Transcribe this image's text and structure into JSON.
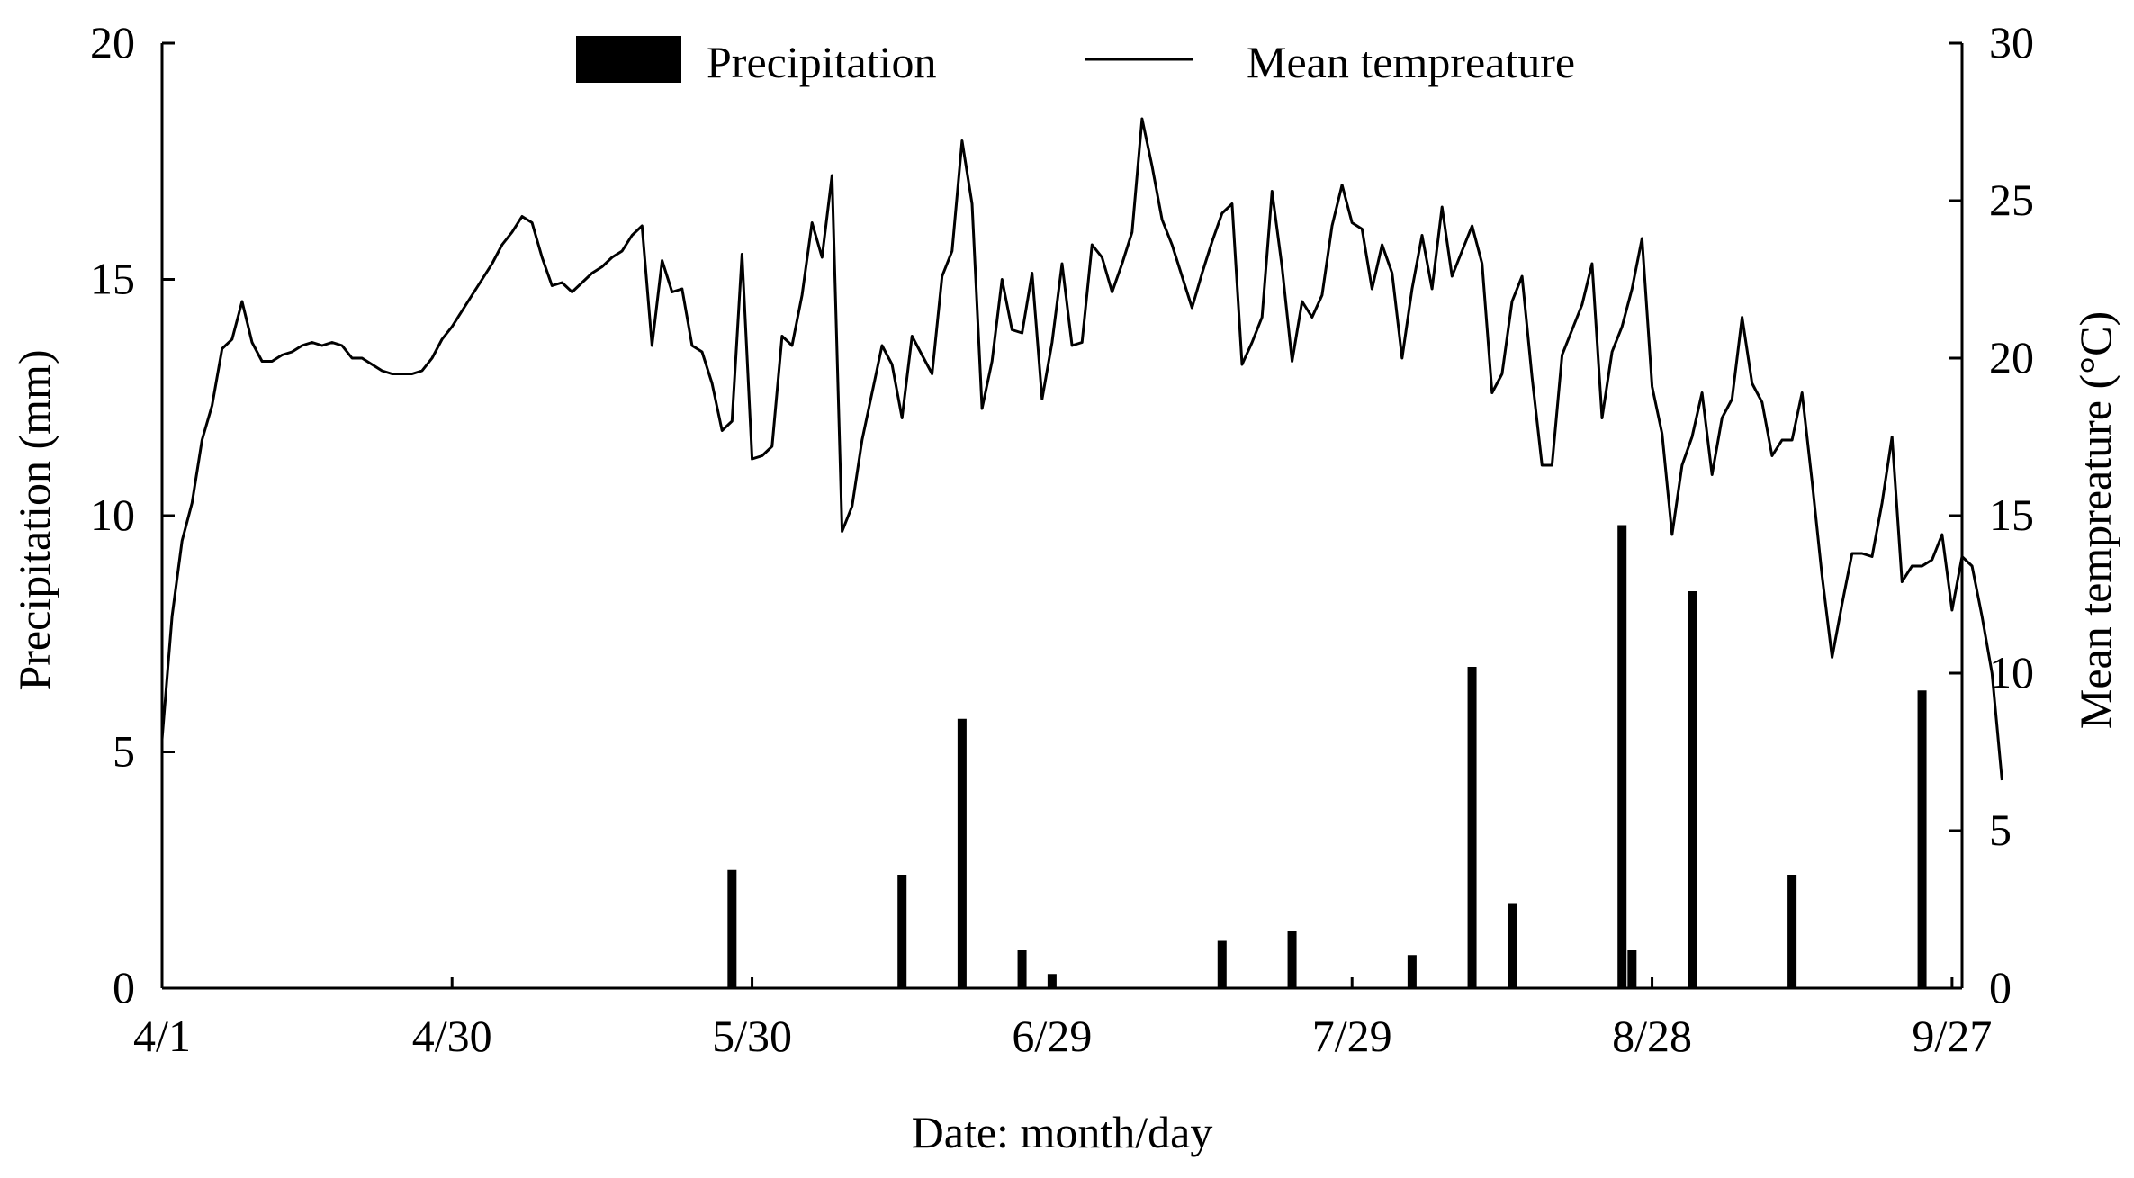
{
  "chart_data": {
    "type": "bar+line",
    "xlabel": "Date: month/day",
    "ylabel_left": "Precipitation (mm)",
    "ylabel_right": "Mean tempreature (°C)",
    "x_range": [
      1,
      181
    ],
    "x_ticks": [
      {
        "day": 1,
        "label": "4/1"
      },
      {
        "day": 30,
        "label": "4/30"
      },
      {
        "day": 60,
        "label": "5/30"
      },
      {
        "day": 90,
        "label": "6/29"
      },
      {
        "day": 120,
        "label": "7/29"
      },
      {
        "day": 150,
        "label": "8/28"
      },
      {
        "day": 180,
        "label": "9/27"
      }
    ],
    "y_left": {
      "min": 0,
      "max": 20,
      "ticks": [
        0,
        5,
        10,
        15,
        20
      ]
    },
    "y_right": {
      "min": 0,
      "max": 30,
      "ticks": [
        0,
        5,
        10,
        15,
        20,
        25,
        30
      ]
    },
    "legend": {
      "position": "top-center",
      "items": [
        "Precipitation",
        "Mean tempreature"
      ]
    },
    "precipitation": {
      "name": "Precipitation",
      "unit": "mm",
      "days": [
        58,
        75,
        81,
        87,
        90,
        107,
        114,
        126,
        132,
        136,
        147,
        148,
        154,
        164,
        177
      ],
      "values": [
        2.5,
        2.4,
        5.7,
        0.8,
        0.3,
        1.0,
        1.2,
        0.7,
        6.8,
        1.8,
        9.8,
        0.8,
        8.4,
        2.4,
        6.3
      ]
    },
    "temperature": {
      "name": "Mean tempreature",
      "unit": "°C",
      "start_day": 1,
      "values": [
        7.9,
        11.8,
        14.2,
        15.4,
        17.4,
        18.5,
        20.3,
        20.6,
        21.8,
        20.5,
        19.9,
        19.9,
        20.1,
        20.2,
        20.4,
        20.5,
        20.4,
        20.5,
        20.4,
        20.0,
        20.0,
        19.8,
        19.6,
        19.5,
        19.5,
        19.5,
        19.6,
        20.0,
        20.6,
        21.0,
        21.5,
        22.0,
        22.5,
        23.0,
        23.6,
        24.0,
        24.5,
        24.3,
        23.2,
        22.3,
        22.4,
        22.1,
        22.4,
        22.7,
        22.9,
        23.2,
        23.4,
        23.9,
        24.2,
        20.4,
        23.1,
        22.1,
        22.2,
        20.4,
        20.2,
        19.2,
        17.7,
        18.0,
        23.3,
        16.8,
        16.9,
        17.2,
        20.7,
        20.4,
        22.0,
        24.3,
        23.2,
        25.8,
        14.5,
        15.3,
        17.4,
        18.9,
        20.4,
        19.8,
        18.1,
        20.7,
        20.1,
        19.5,
        22.6,
        23.4,
        26.9,
        24.9,
        18.4,
        19.9,
        22.5,
        20.9,
        20.8,
        22.7,
        18.7,
        20.5,
        23.0,
        20.4,
        20.5,
        23.6,
        23.2,
        22.1,
        23.0,
        24.0,
        27.6,
        26.1,
        24.4,
        23.6,
        22.6,
        21.6,
        22.7,
        23.7,
        24.6,
        24.9,
        19.8,
        20.5,
        21.3,
        25.3,
        22.9,
        19.9,
        21.8,
        21.3,
        22.0,
        24.2,
        25.5,
        24.3,
        24.1,
        22.2,
        23.6,
        22.7,
        20.0,
        22.2,
        23.9,
        22.2,
        24.8,
        22.6,
        23.4,
        24.2,
        23.0,
        18.9,
        19.5,
        21.8,
        22.6,
        19.4,
        16.6,
        16.6,
        20.1,
        20.9,
        21.7,
        23.0,
        18.1,
        20.2,
        21.0,
        22.2,
        23.8,
        19.1,
        17.6,
        14.4,
        16.6,
        17.5,
        18.9,
        16.3,
        18.1,
        18.7,
        21.3,
        19.2,
        18.6,
        16.9,
        17.4,
        17.4,
        18.9,
        16.1,
        13.1,
        10.5,
        12.2,
        13.8,
        13.8,
        13.7,
        15.4,
        17.5,
        12.9,
        13.4,
        13.4,
        13.6,
        14.4,
        12.0,
        13.7,
        13.4,
        11.8,
        10.0,
        6.6
      ]
    }
  }
}
